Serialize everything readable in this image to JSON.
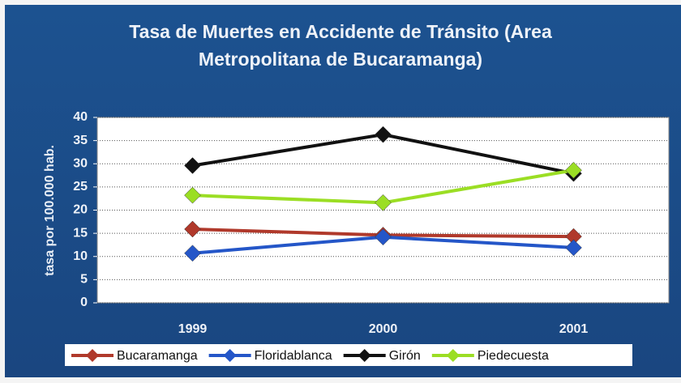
{
  "chart_data": {
    "type": "line",
    "title": "Tasa de Muertes en Accidente de Tránsito (Area Metropolitana de Bucaramanga)",
    "y_label": "tasa por 100.000 hab.",
    "categories": [
      "1999",
      "2000",
      "2001"
    ],
    "series": [
      {
        "name": "Bucaramanga",
        "color": "#b0392b",
        "values": [
          15.9,
          14.6,
          14.3
        ]
      },
      {
        "name": "Floridablanca",
        "color": "#2456c8",
        "values": [
          10.7,
          14.2,
          11.9
        ]
      },
      {
        "name": "Girón",
        "color": "#111111",
        "values": [
          29.6,
          36.3,
          27.9
        ]
      },
      {
        "name": "Piedecuesta",
        "color": "#9bde24",
        "values": [
          23.2,
          21.6,
          28.6
        ]
      }
    ],
    "ylim": [
      0,
      40
    ],
    "yticks": [
      0,
      5,
      10,
      15,
      20,
      25,
      30,
      35,
      40
    ],
    "grid": true,
    "legend": "bottom"
  }
}
